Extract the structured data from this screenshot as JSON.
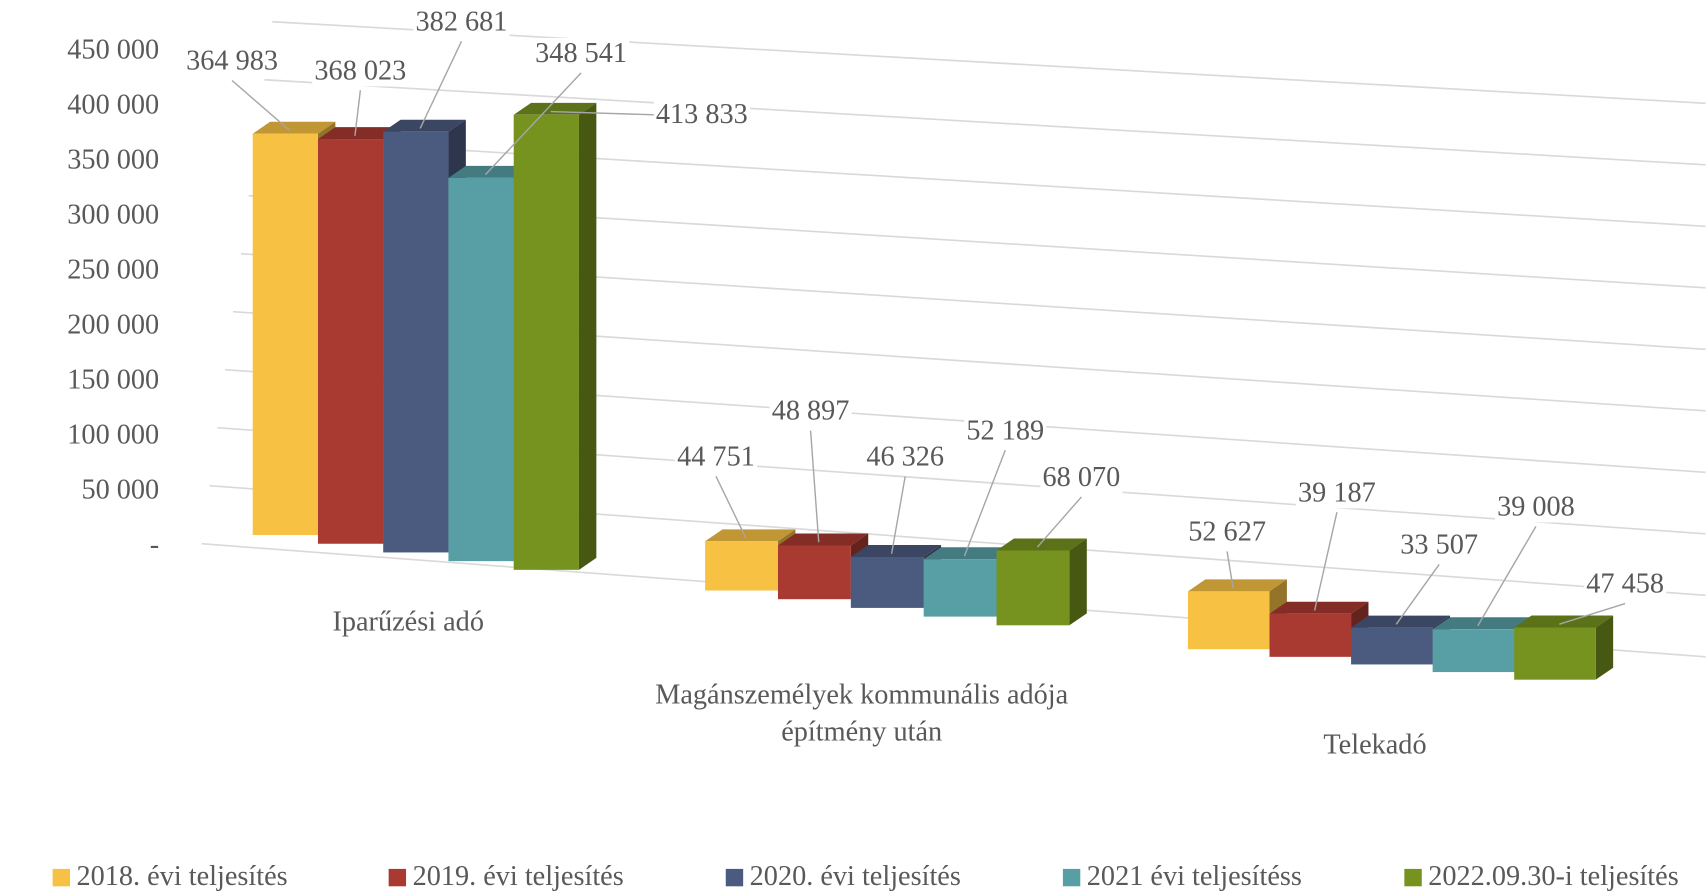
{
  "chart_data": {
    "type": "bar3d",
    "categories": [
      "Iparűzési adó",
      "Magánszemélyek kommunális adója építmény után",
      "Telekadó"
    ],
    "series": [
      {
        "name": "2018. évi teljesítés",
        "color": "#f7c244",
        "values": [
          364983,
          44751,
          52627
        ],
        "value_labels": [
          "364 983",
          "44 751",
          "52 627"
        ]
      },
      {
        "name": "2019. évi teljesítés",
        "color": "#a93a31",
        "values": [
          368023,
          48897,
          39187
        ],
        "value_labels": [
          "368 023",
          "48 897",
          "39 187"
        ]
      },
      {
        "name": "2020. évi teljesítés",
        "color": "#4b5a7f",
        "values": [
          382681,
          46326,
          33507
        ],
        "value_labels": [
          "382 681",
          "46 326",
          "33 507"
        ]
      },
      {
        "name": "2021 évi teljesítéss",
        "color": "#579ea5",
        "values": [
          348541,
          52189,
          39008
        ],
        "value_labels": [
          "348 541",
          "52 189",
          "39 008"
        ]
      },
      {
        "name": "2022.09.30-i teljesítés",
        "color": "#76921f",
        "values": [
          413833,
          68070,
          47458
        ],
        "value_labels": [
          "413 833",
          "68 070",
          "47 458"
        ]
      }
    ],
    "ylim": [
      0,
      450000
    ],
    "yticks": [
      {
        "value": 0,
        "label": "-"
      },
      {
        "value": 50000,
        "label": "50 000"
      },
      {
        "value": 100000,
        "label": "100 000"
      },
      {
        "value": 150000,
        "label": "150 000"
      },
      {
        "value": 200000,
        "label": "200 000"
      },
      {
        "value": 250000,
        "label": "250 000"
      },
      {
        "value": 300000,
        "label": "300 000"
      },
      {
        "value": 350000,
        "label": "350 000"
      },
      {
        "value": 400000,
        "label": "400 000"
      },
      {
        "value": 450000,
        "label": "450 000"
      }
    ],
    "grid": true,
    "legend": "bottom"
  }
}
